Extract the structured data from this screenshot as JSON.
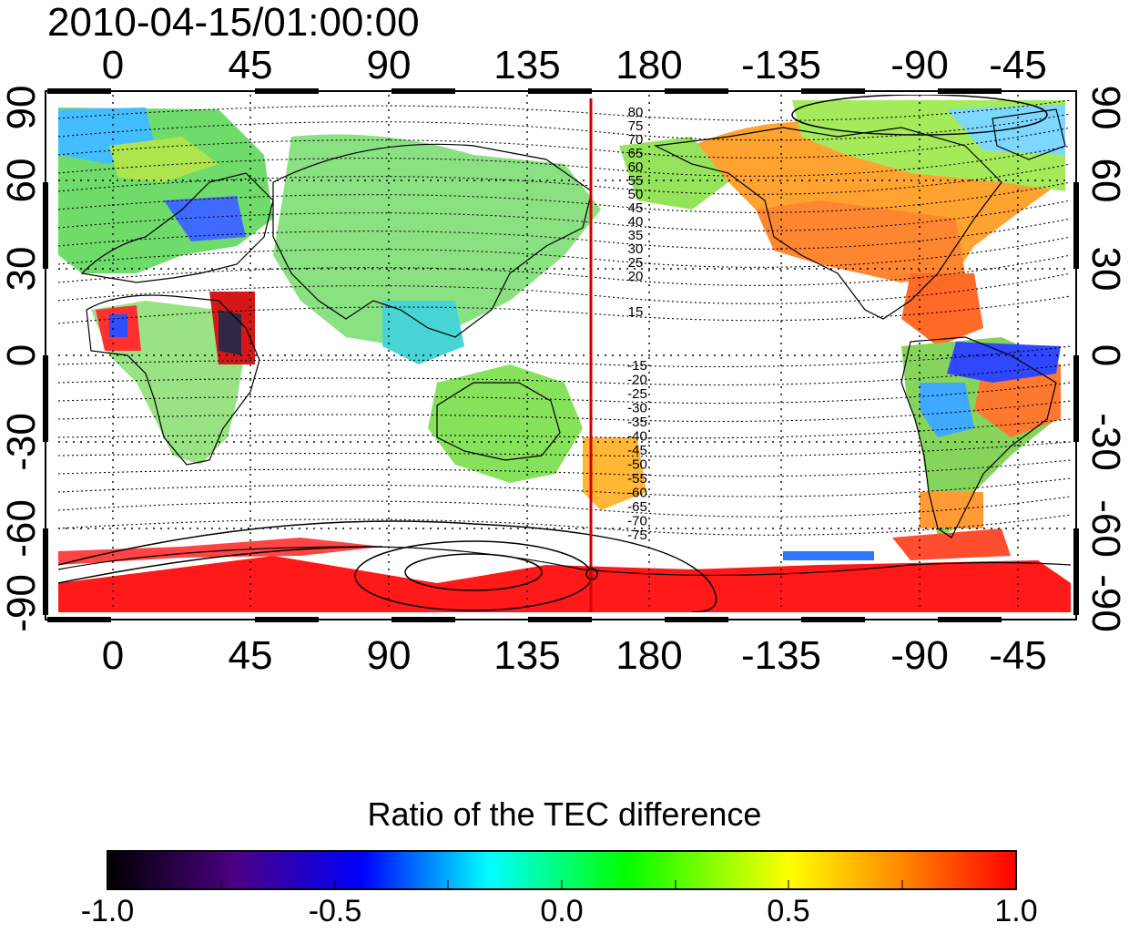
{
  "title": "2010-04-15/01:00:00",
  "map": {
    "top_x_ticks": [
      "0",
      "45",
      "90",
      "135",
      "180",
      "-135",
      "-90",
      "-45"
    ],
    "bottom_x_ticks": [
      "0",
      "45",
      "90",
      "135",
      "180",
      "-135",
      "-90",
      "-45"
    ],
    "left_y_ticks": [
      "90",
      "60",
      "30",
      "0",
      "-30",
      "-60",
      "-90"
    ],
    "right_y_ticks": [
      "90",
      "60",
      "30",
      "0",
      "-30",
      "-60",
      "-90"
    ],
    "meridian_line_color": "#d40000",
    "meridian_longitude": 166,
    "contour_labels_north": [
      "80",
      "75",
      "70",
      "65",
      "60",
      "55",
      "50",
      "45",
      "40",
      "35",
      "30",
      "25",
      "20",
      "15"
    ],
    "contour_labels_south": [
      "-15",
      "-20",
      "-25",
      "-30",
      "-35",
      "-40",
      "-45",
      "-50",
      "-55",
      "-60",
      "-65",
      "-70",
      "-75"
    ]
  },
  "colorbar": {
    "title": "Ratio of the TEC difference",
    "tick_labels": [
      "-1.0",
      "-0.5",
      "0.0",
      "0.5",
      "1.0"
    ],
    "range": [
      -1.0,
      1.0
    ],
    "colors": [
      "#000000",
      "#4b0082",
      "#0000ff",
      "#00ffff",
      "#00ff00",
      "#ffff00",
      "#ff8c00",
      "#ff0000"
    ]
  }
}
